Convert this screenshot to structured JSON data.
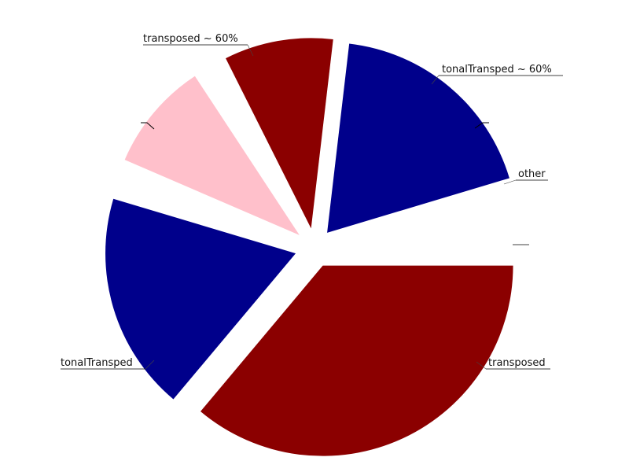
{
  "chart_data": {
    "type": "pie",
    "title": "",
    "slices": [
      {
        "label": "",
        "value": 5,
        "color": "#ffffff"
      },
      {
        "label": "transposed ~ 60%",
        "value": 20,
        "color": "#00008b"
      },
      {
        "label": "tonalTransped ~ 60%",
        "value": 10,
        "color": "#8b0000"
      },
      {
        "label": "",
        "value": 2,
        "color": "#ffffff"
      },
      {
        "label": "other",
        "value": 10,
        "color": "#ffc0cb"
      },
      {
        "label": "",
        "value": 2,
        "color": "#ffffff"
      },
      {
        "label": "transposed",
        "value": 20,
        "color": "#00008b"
      },
      {
        "label": "tonalTransped",
        "value": 39,
        "color": "#8b0000"
      }
    ]
  }
}
